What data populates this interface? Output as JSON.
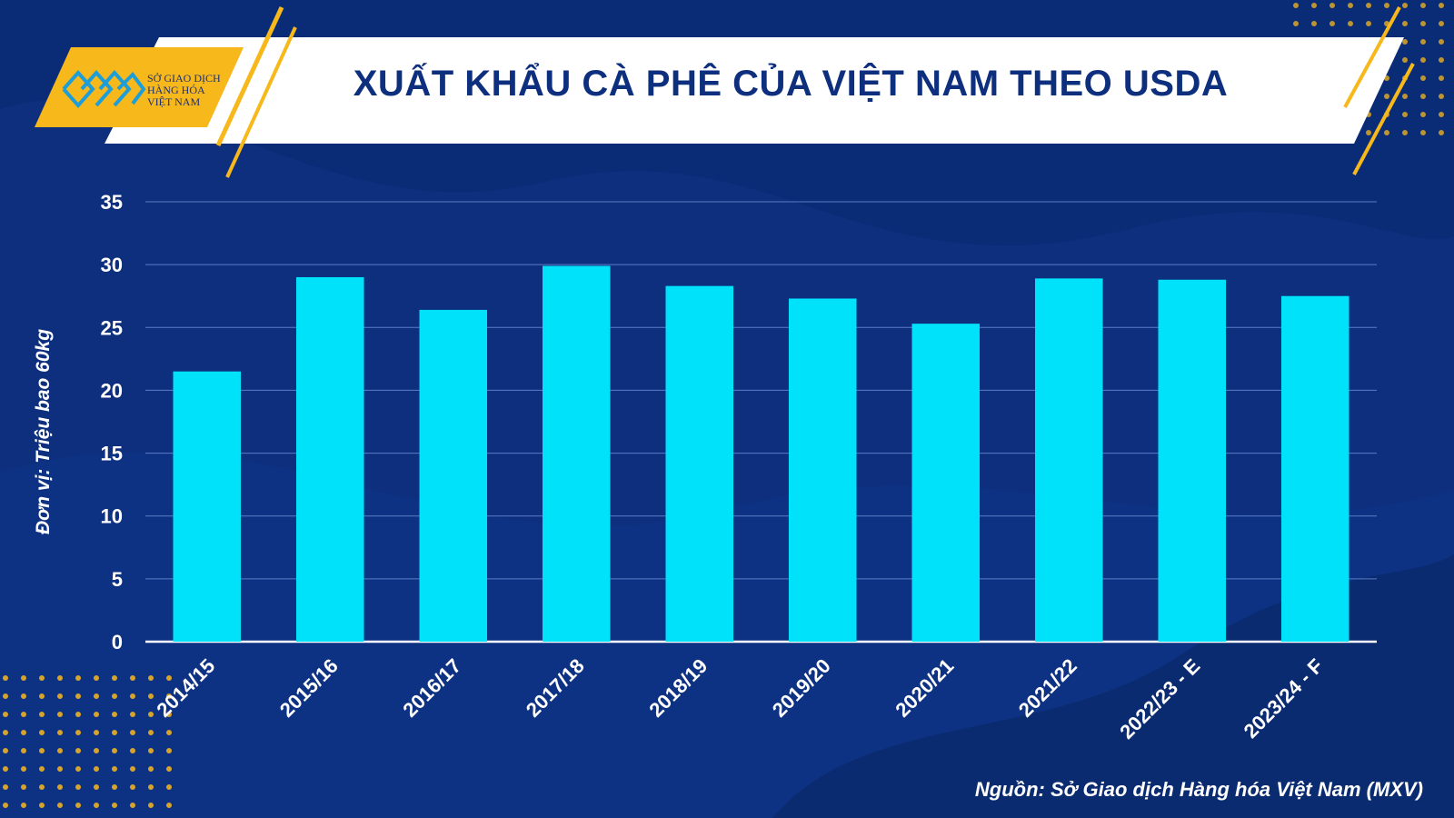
{
  "header": {
    "title": "XUẤT KHẨU CÀ PHÊ CỦA VIỆT NAM THEO USDA",
    "logo_lines": [
      "SỞ GIAO DỊCH",
      "HÀNG HÓA",
      "VIỆT NAM"
    ]
  },
  "source": "Nguồn: Sở Giao dịch Hàng hóa Việt Nam (MXV)",
  "colors": {
    "background": "#0d2f7e",
    "bar": "#00e1fa",
    "accent": "#f7b81b",
    "banner": "#ffffff"
  },
  "chart_data": {
    "type": "bar",
    "categories": [
      "2014/15",
      "2015/16",
      "2016/17",
      "2017/18",
      "2018/19",
      "2019/20",
      "2020/21",
      "2021/22",
      "2022/23 - E",
      "2023/24 - F"
    ],
    "values": [
      21.5,
      29.0,
      26.4,
      29.9,
      28.3,
      27.3,
      25.3,
      28.9,
      28.8,
      27.5
    ],
    "ylabel": "Đơn vị: Triệu bao 60kg",
    "ylim": [
      0,
      35
    ],
    "yticks": [
      0,
      5,
      10,
      15,
      20,
      25,
      30,
      35
    ],
    "grid": true
  }
}
